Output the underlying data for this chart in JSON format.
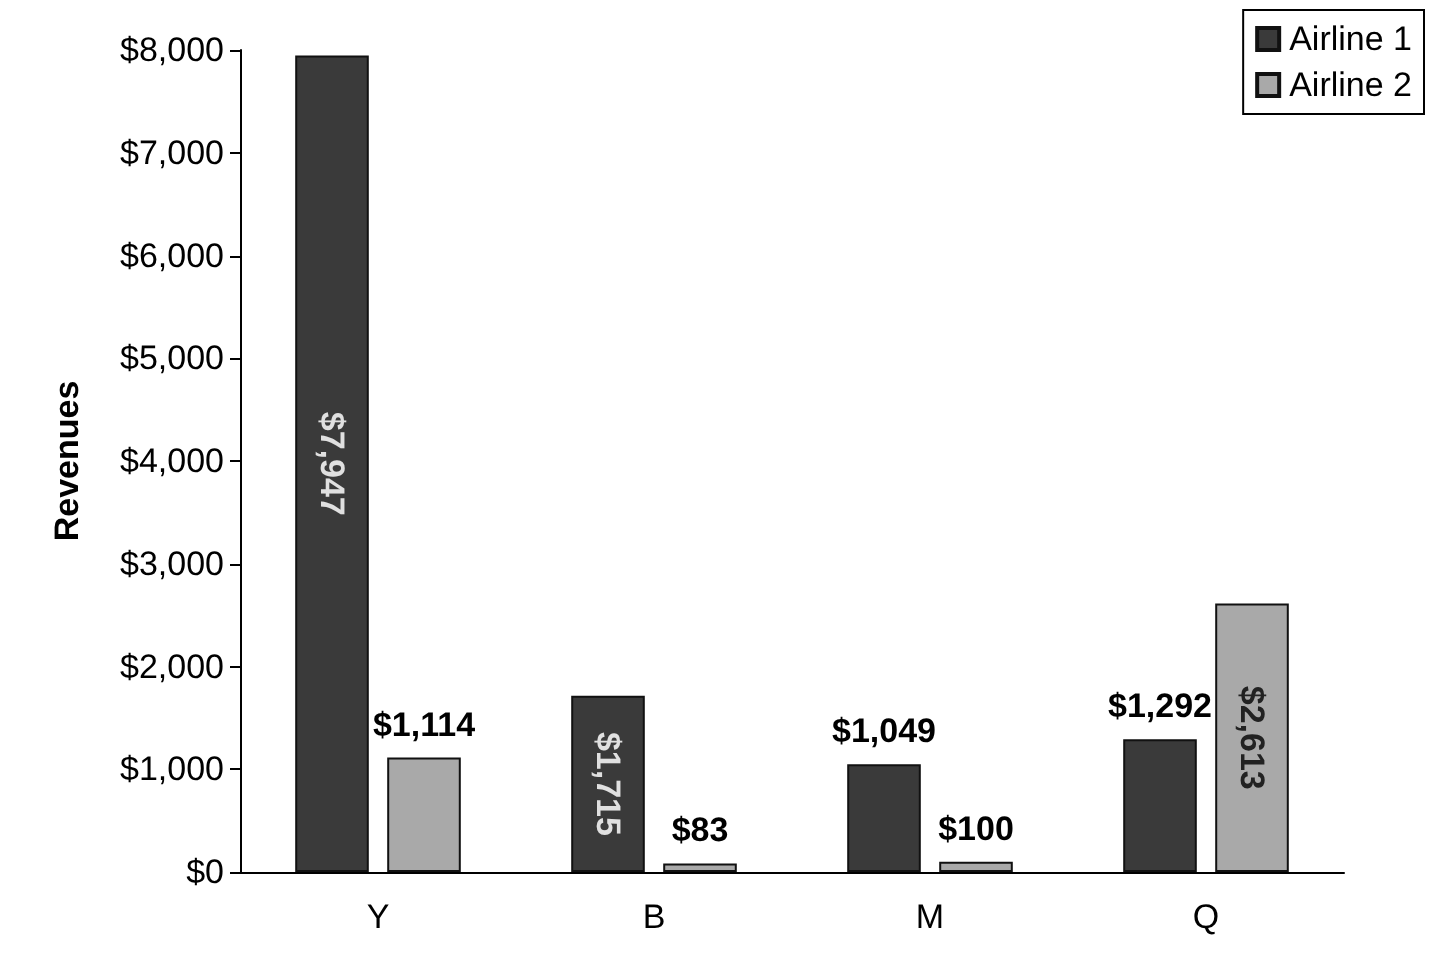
{
  "chart_data": {
    "type": "bar",
    "ylabel": "Revenues",
    "categories": [
      "Y",
      "B",
      "M",
      "Q"
    ],
    "series": [
      {
        "name": "Airline 1",
        "color": "#3a3a3a",
        "values": [
          7947,
          1715,
          1049,
          1292
        ],
        "value_labels": [
          "$7,947",
          "$1,715",
          "$1,049",
          "$1,292"
        ]
      },
      {
        "name": "Airline 2",
        "color": "#a9a9a9",
        "values": [
          1114,
          83,
          100,
          2613
        ],
        "value_labels": [
          "$1,114",
          "$83",
          "$100",
          "$2,613"
        ]
      }
    ],
    "ylim": [
      0,
      8000
    ],
    "yticks": [
      {
        "value": 0,
        "label": "$0"
      },
      {
        "value": 1000,
        "label": "$1,000"
      },
      {
        "value": 2000,
        "label": "$2,000"
      },
      {
        "value": 3000,
        "label": "$3,000"
      },
      {
        "value": 4000,
        "label": "$4,000"
      },
      {
        "value": 5000,
        "label": "$5,000"
      },
      {
        "value": 6000,
        "label": "$6,000"
      },
      {
        "value": 7000,
        "label": "$7,000"
      },
      {
        "value": 8000,
        "label": "$8,000"
      }
    ],
    "grid": false,
    "legend": "top right"
  }
}
